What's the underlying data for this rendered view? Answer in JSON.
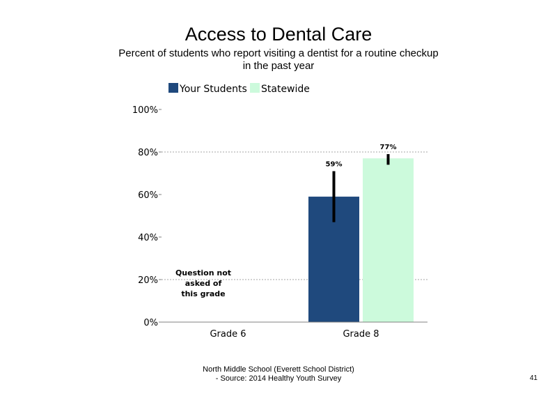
{
  "chart_data": {
    "type": "bar",
    "title": "Access to Dental Care",
    "subtitle_lines": [
      "Percent of students who report visiting a dentist for a routine checkup",
      "in the past year"
    ],
    "categories": [
      "Grade 6",
      "Grade 8"
    ],
    "series": [
      {
        "name": "Your Students",
        "color": "#1f497d",
        "values": [
          null,
          59
        ],
        "labels": [
          "",
          "59%"
        ],
        "error_low": [
          null,
          47
        ],
        "error_high": [
          null,
          71
        ]
      },
      {
        "name": "Statewide",
        "color": "#ccfadc",
        "values": [
          null,
          77
        ],
        "labels": [
          "",
          "77%"
        ],
        "error_low": [
          null,
          74
        ],
        "error_high": [
          null,
          79
        ]
      }
    ],
    "y_ticks": [
      "0%",
      "20%",
      "40%",
      "60%",
      "80%",
      "100%"
    ],
    "ylim": [
      0,
      100
    ],
    "gridlines": [
      20,
      80
    ],
    "legend_position": "top",
    "annotation": [
      "Question not",
      "asked of",
      "this grade"
    ],
    "xlabel": "",
    "ylabel": ""
  },
  "footer": {
    "line1": "North Middle School (Everett School District)",
    "line2": "- Source: 2014 Healthy Youth Survey"
  },
  "page_number": "41"
}
